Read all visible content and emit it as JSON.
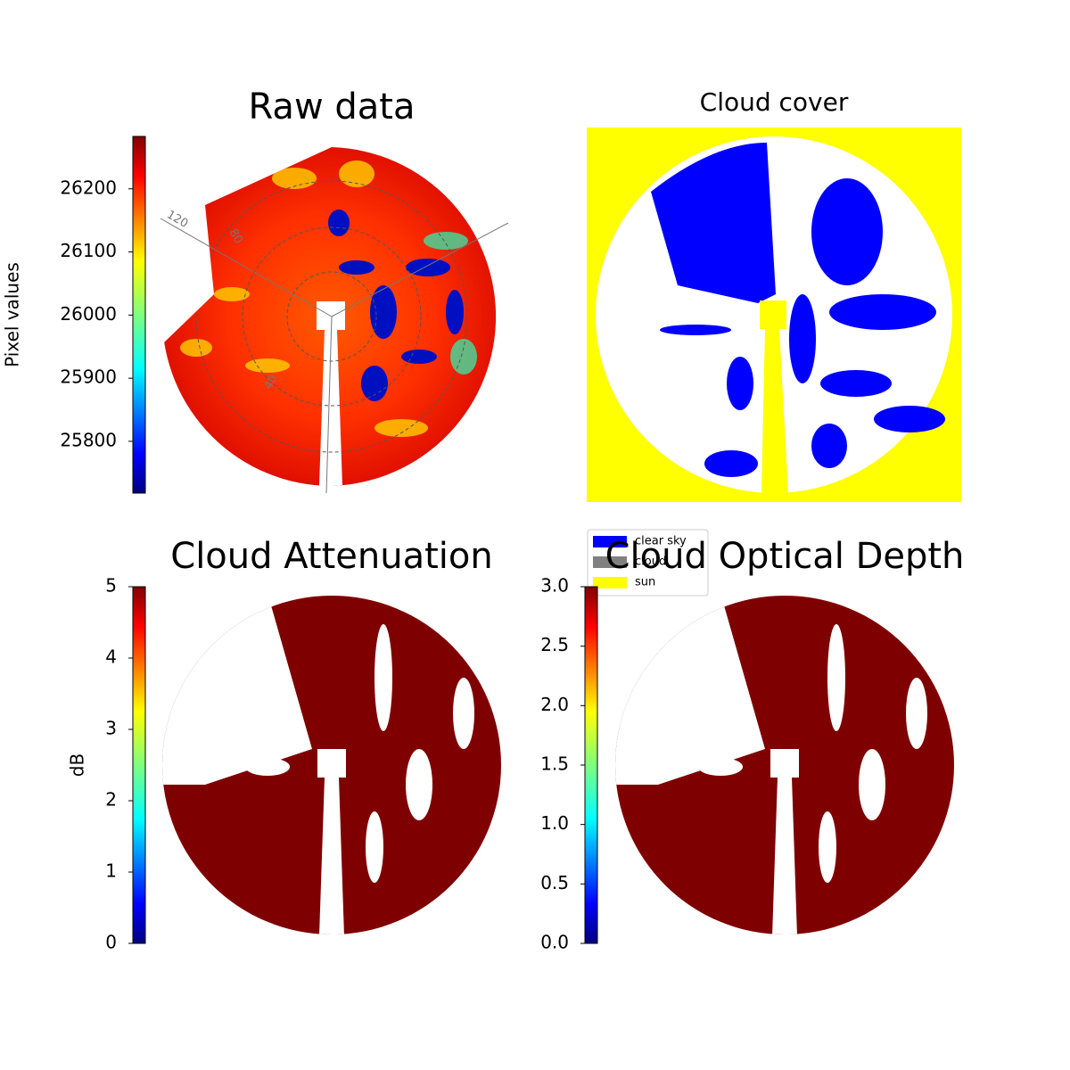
{
  "chart_data": [
    {
      "type": "image",
      "title": "Raw data",
      "colorbar": {
        "label": "Pixel values",
        "lim": [
          25718,
          26283
        ],
        "ticks": [
          25800,
          25900,
          26000,
          26100,
          26200
        ]
      },
      "annotations": [
        "120",
        "80",
        "40"
      ]
    },
    {
      "type": "image",
      "title": "Cloud cover",
      "legend": [
        {
          "name": "clear sky",
          "color": "#0000ff"
        },
        {
          "name": "cloud",
          "color": "#808080"
        },
        {
          "name": "sun",
          "color": "#ffff00"
        }
      ],
      "legend_loc": "lower left"
    },
    {
      "type": "image",
      "title": "Cloud Attenuation",
      "colorbar": {
        "label": "dB",
        "lim": [
          0,
          5
        ],
        "ticks": [
          0,
          1,
          2,
          3,
          4,
          5
        ]
      }
    },
    {
      "type": "image",
      "title": "Cloud Optical Depth",
      "colorbar": {
        "lim": [
          0,
          3
        ],
        "ticks": [
          {
            "value": 0,
            "label": "0.0"
          },
          0.5,
          {
            "value": 1,
            "label": "1.0"
          },
          1.5,
          {
            "value": 2,
            "label": "2.0"
          },
          2.5,
          {
            "value": 3,
            "label": "3.0"
          }
        ]
      }
    }
  ]
}
